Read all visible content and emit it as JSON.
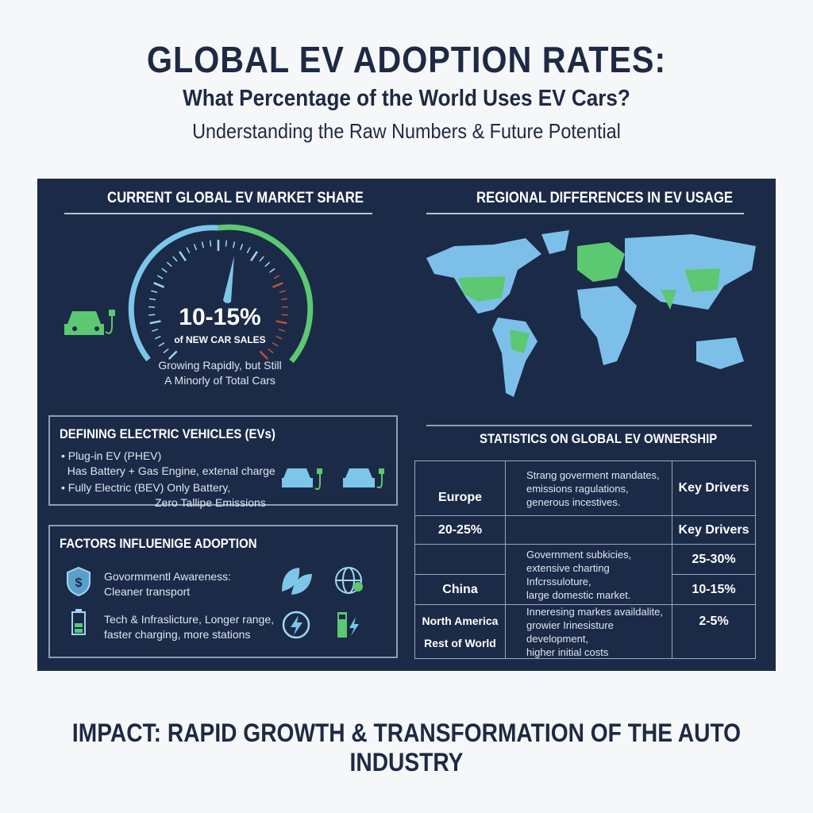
{
  "title": "GLOBAL EV ADOPTION RATES:",
  "subtitle": "What Percentage of the World Uses EV Cars?",
  "tagline": "Understanding the Raw Numbers & Future Potential",
  "market_share": {
    "heading": "CURRENT GLOBAL EV MARKET SHARE",
    "value": "10-15%",
    "value_label": "of NEW CAR SALES",
    "note_line1": "Growing Rapidly, but Still",
    "note_line2": "A Minorly of Total Cars",
    "icon": "electric-car-icon",
    "colors": {
      "blue": "#7cc6ea",
      "green": "#5cc872",
      "red": "#c0503c"
    }
  },
  "regional": {
    "heading": "REGIONAL DIFFERENCES IN EV USAGE",
    "map_colors": {
      "land": "#7cc0ea",
      "highlight": "#5cc872"
    }
  },
  "defining": {
    "heading": "DEFINING ELECTRIC VEHICLES (EVs)",
    "item1_line1": "Plug-in EV (PHEV)",
    "item1_line2": "Has Battery + Gas Engine, extenal charge",
    "item2_line1": "Fully Electric (BEV) Only Battery,",
    "item2_line2": "Zero Tallipe Emissions"
  },
  "factors": {
    "heading": "FACTORS INFLUENIGE ADOPTION",
    "f1_line1": "Govormmentl Awareness:",
    "f1_line2": "Cleaner transport",
    "f2_line1": "Tech & Infraslicture, Longer range,",
    "f2_line2": "faster charging, more stations"
  },
  "stats": {
    "heading": "STATISTICS ON GLOBAL EV OWNERSHIP",
    "cells": {
      "europe": "Europe",
      "europe_desc": [
        "Strang goverment mandates,",
        "emissions ragulations,",
        "generous incestives."
      ],
      "key1": "Key Drivers",
      "eu_pct": "20-25%",
      "key2": "Key Drivers",
      "china_desc": [
        "Government subkicies,",
        "extensive charting Infcrssuloture,",
        "large domestic market."
      ],
      "pct_25_30": "25-30%",
      "china": "China",
      "pct_10_15": "10-15%",
      "na": "North America",
      "row": "Rest of World",
      "row_desc": [
        "Inneresing markes availdalite,",
        "growier Irinesisture development,",
        "higher initial costs"
      ],
      "pct_2_5": "2-5%"
    }
  },
  "impact": "IMPACT: RAPID GROWTH & TRANSFORMATION OF THE AUTO INDUSTRY"
}
